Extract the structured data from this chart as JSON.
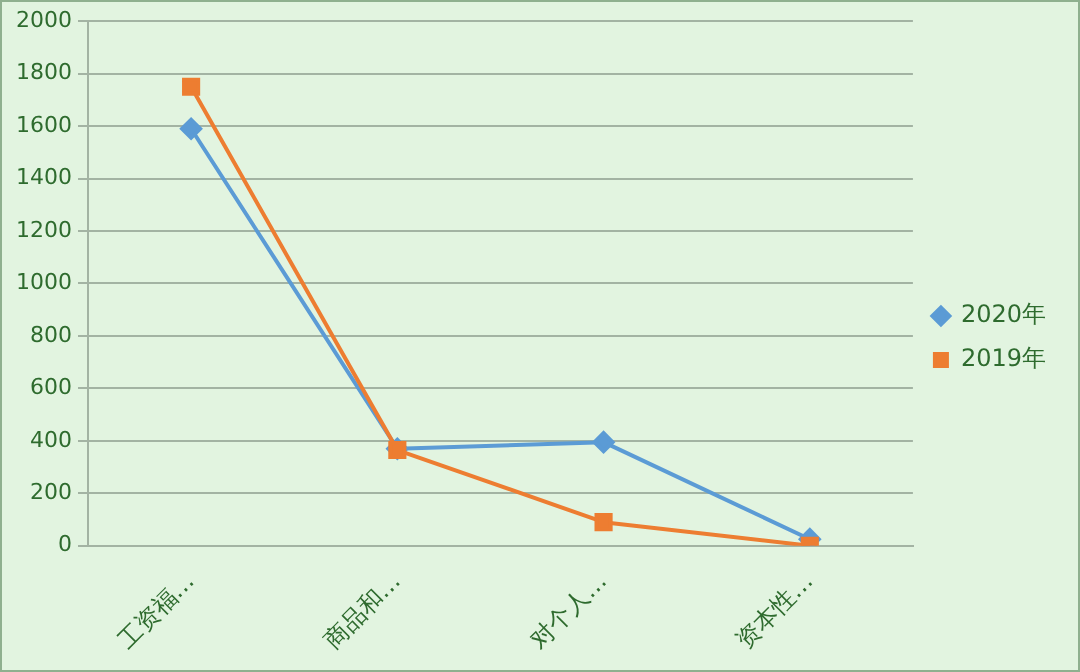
{
  "chart_data": {
    "type": "line",
    "categories": [
      "工资福…",
      "商品和…",
      "对个人…",
      "资本性…"
    ],
    "series": [
      {
        "name": "2020年",
        "color": "#5b9bd5",
        "marker": "diamond",
        "values": [
          1590,
          370,
          395,
          25
        ]
      },
      {
        "name": "2019年",
        "color": "#ed7d31",
        "marker": "square",
        "values": [
          1750,
          365,
          90,
          0
        ]
      }
    ],
    "ylim": [
      0,
      2000
    ],
    "yticks": [
      0,
      200,
      400,
      600,
      800,
      1000,
      1200,
      1400,
      1600,
      1800,
      2000
    ],
    "grid": "y",
    "legend": "right"
  }
}
